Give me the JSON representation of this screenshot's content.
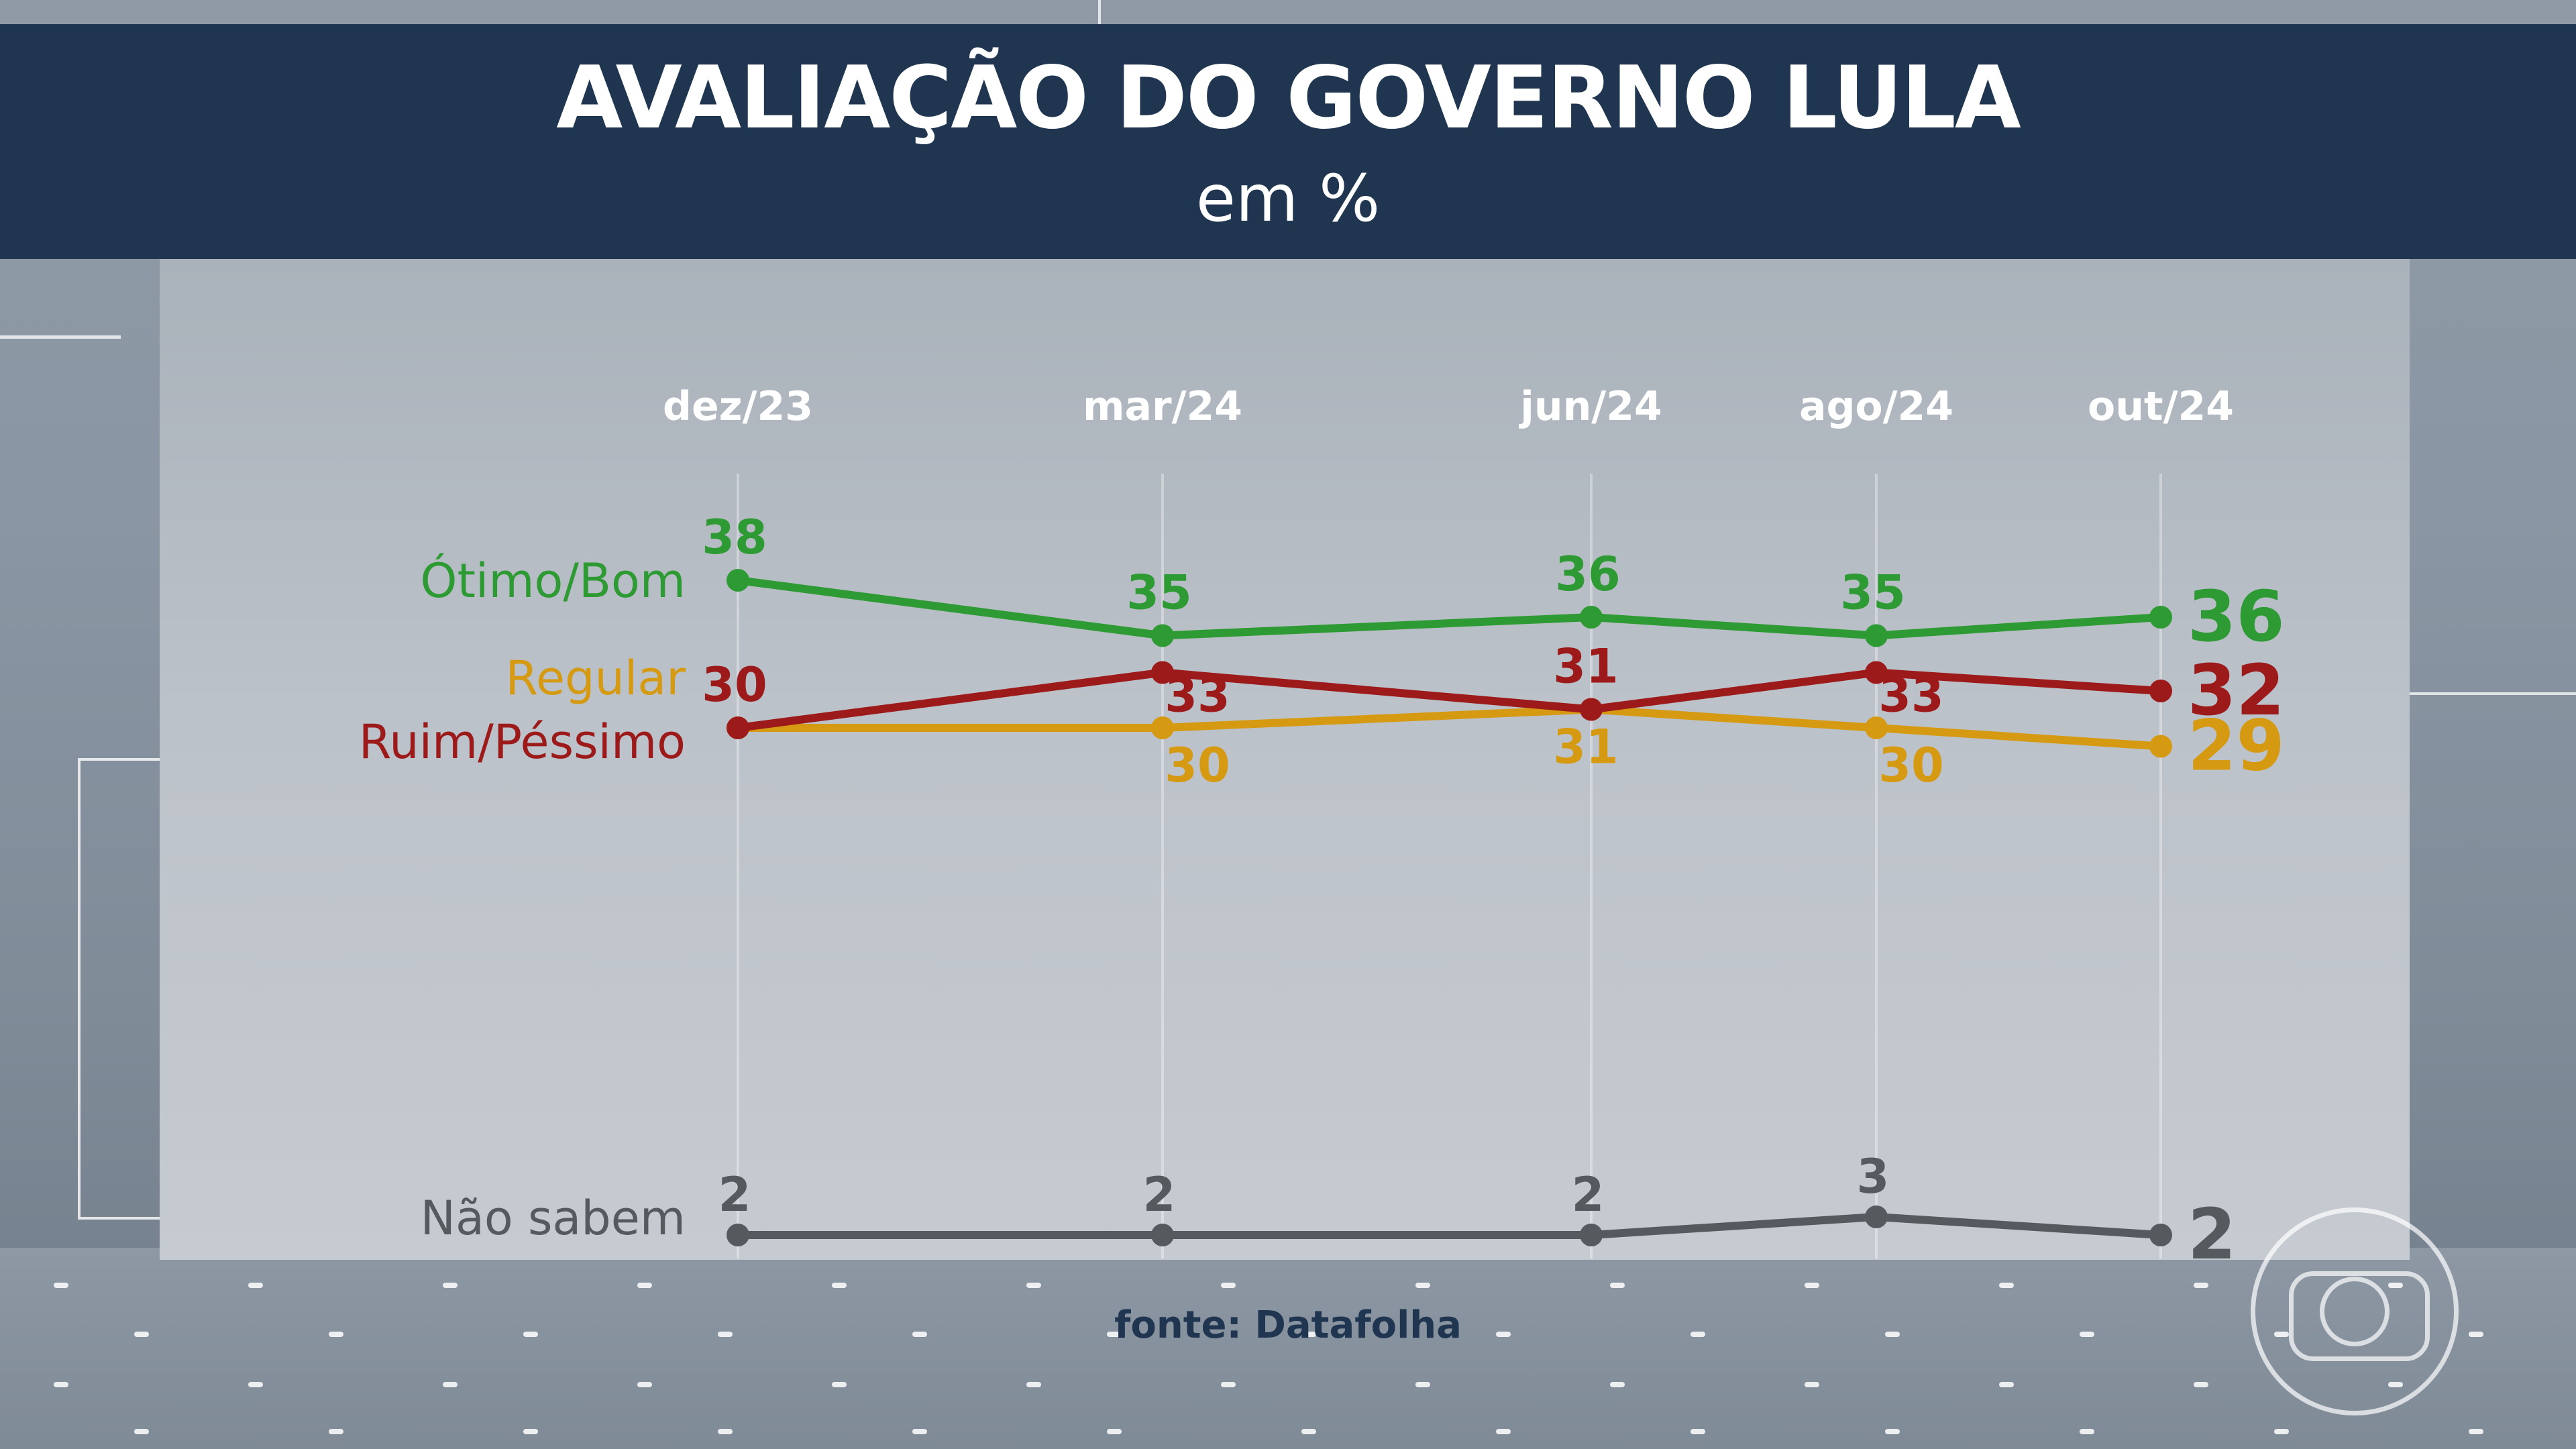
{
  "header": {
    "title": "AVALIAÇÃO DO GOVERNO LULA",
    "subtitle": "em %"
  },
  "source": "fonte: Datafolha",
  "colors": {
    "header_bg": "#1f3550",
    "otimo_bom": "#2e9a33",
    "regular": "#d69a12",
    "ruim_pessimo": "#9c1a1a",
    "nao_sabem": "#555a5f",
    "month_label": "#ffffff"
  },
  "logo_icon": "globo-logo-icon",
  "chart_data": {
    "type": "line",
    "title": "AVALIAÇÃO DO GOVERNO LULA",
    "subtitle": "em %",
    "categories": [
      "dez/23",
      "mar/24",
      "jun/24",
      "ago/24",
      "out/24"
    ],
    "series": [
      {
        "name": "Ótimo/Bom",
        "color": "#2e9a33",
        "values": [
          38,
          35,
          36,
          35,
          36
        ]
      },
      {
        "name": "Regular",
        "color": "#d69a12",
        "values": [
          30,
          30,
          31,
          30,
          29
        ]
      },
      {
        "name": "Ruim/Péssimo",
        "color": "#9c1a1a",
        "values": [
          30,
          33,
          31,
          33,
          32
        ]
      },
      {
        "name": "Não sabem",
        "color": "#555a5f",
        "values": [
          2,
          2,
          2,
          3,
          2
        ]
      }
    ],
    "legend": "left",
    "grid": "vertical"
  }
}
